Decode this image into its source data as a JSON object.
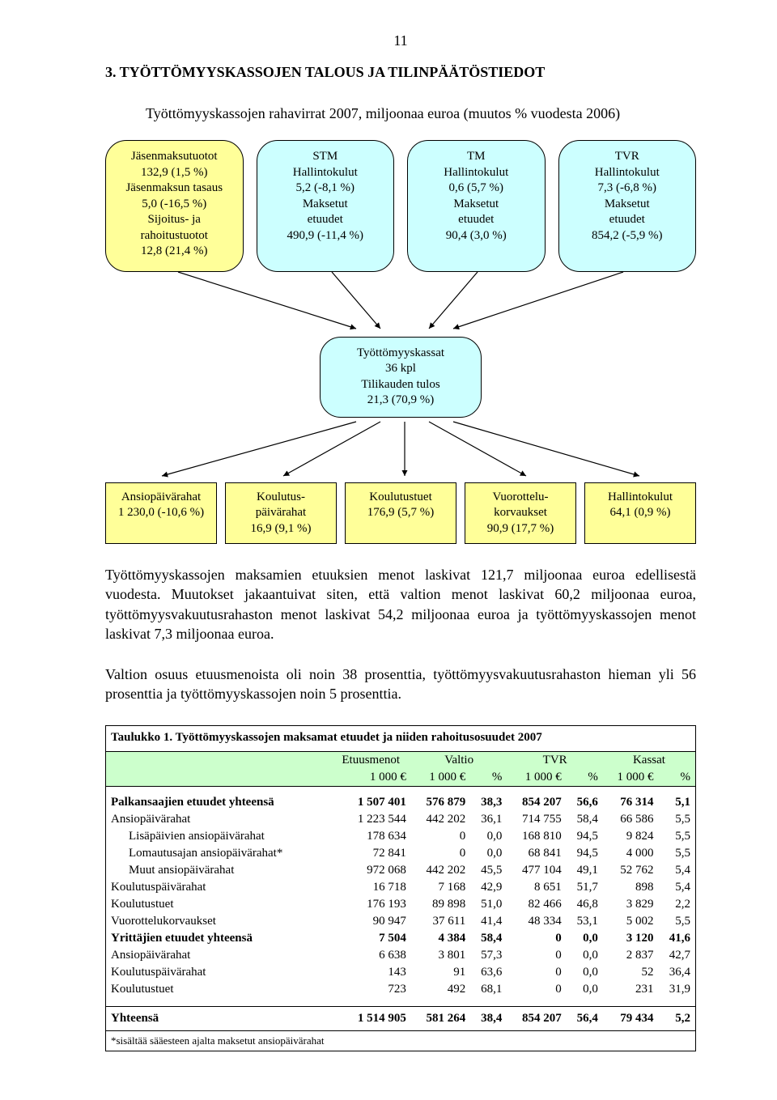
{
  "page_number": "11",
  "section_heading": "3. TYÖTTÖMYYSKASSOJEN TALOUS JA TILINPÄÄTÖSTIEDOT",
  "diagram": {
    "title": "Työttömyyskassojen rahavirrat 2007, miljoonaa euroa (muutos % vuodesta 2006)",
    "top_boxes": [
      "Jäsenmaksutuotot\n132,9 (1,5 %)\nJäsenmaksun tasaus\n5,0 (-16,5 %)\nSijoitus- ja\nrahoitustuotot\n12,8 (21,4 %)",
      "STM\nHallintokulut\n5,2 (-8,1 %)\nMaksetut\netuudet\n490,9 (-11,4 %)",
      "TM\nHallintokulut\n0,6 (5,7 %)\nMaksetut\netuudet\n90,4 (3,0 %)",
      "TVR\nHallintokulut\n7,3 (-6,8 %)\nMaksetut\netuudet\n854,2 (-5,9 %)"
    ],
    "center_box": "Työttömyyskassat\n36 kpl\nTilikauden tulos\n21,3 (70,9 %)",
    "bottom_boxes": [
      "Ansiopäivärahat\n1 230,0 (-10,6 %)",
      "Koulutus-\npäivärahat\n16,9 (9,1 %)",
      "Koulutustuet\n176,9 (5,7 %)",
      "Vuorottelu-\nkorvaukset\n90,9 (17,7 %)",
      "Hallintokulut\n64,1 (0,9 %)"
    ],
    "colors": {
      "yellow": "#ffff99",
      "cyan": "#ccffff",
      "green": "#ccffcc"
    }
  },
  "paragraph1": "Työttömyyskassojen maksamien etuuksien menot laskivat 121,7 miljoonaa euroa edellisestä vuodesta. Muutokset jakaantuivat siten, että valtion menot laskivat 60,2 miljoonaa euroa, työttömyysvakuutusrahaston menot laskivat 54,2 miljoonaa euroa ja työttömyyskassojen menot laskivat 7,3 miljoonaa euroa.",
  "paragraph2": "Valtion osuus etuusmenoista oli noin 38 prosenttia, työttömyysvakuutusrahaston hieman yli 56 prosenttia ja työttömyyskassojen noin 5 prosenttia.",
  "table": {
    "caption": "Taulukko 1. Työttömyyskassojen maksamat etuudet ja niiden rahoitusosuudet 2007",
    "headers1": [
      "",
      "Etuusmenot",
      "Valtio",
      "",
      "TVR",
      "",
      "Kassat",
      ""
    ],
    "headers2": [
      "",
      "1 000 €",
      "1 000 €",
      "%",
      "1 000 €",
      "%",
      "1 000 €",
      "%"
    ],
    "rows": [
      {
        "bold": true,
        "cells": [
          "Palkansaajien etuudet yhteensä",
          "1 507 401",
          "576 879",
          "38,3",
          "854 207",
          "56,6",
          "76 314",
          "5,1"
        ]
      },
      {
        "bold": false,
        "cells": [
          "Ansiopäivärahat",
          "1 223 544",
          "442 202",
          "36,1",
          "714 755",
          "58,4",
          "66 586",
          "5,5"
        ]
      },
      {
        "bold": false,
        "indent": true,
        "cells": [
          "Lisäpäivien ansiopäivärahat",
          "178 634",
          "0",
          "0,0",
          "168 810",
          "94,5",
          "9 824",
          "5,5"
        ]
      },
      {
        "bold": false,
        "indent": true,
        "cells": [
          "Lomautusajan ansiopäivärahat*",
          "72 841",
          "0",
          "0,0",
          "68 841",
          "94,5",
          "4 000",
          "5,5"
        ]
      },
      {
        "bold": false,
        "indent": true,
        "cells": [
          "Muut ansiopäivärahat",
          "972 068",
          "442 202",
          "45,5",
          "477 104",
          "49,1",
          "52 762",
          "5,4"
        ]
      },
      {
        "bold": false,
        "cells": [
          "Koulutuspäivärahat",
          "16 718",
          "7 168",
          "42,9",
          "8 651",
          "51,7",
          "898",
          "5,4"
        ]
      },
      {
        "bold": false,
        "cells": [
          "Koulutustuet",
          "176 193",
          "89 898",
          "51,0",
          "82 466",
          "46,8",
          "3 829",
          "2,2"
        ]
      },
      {
        "bold": false,
        "cells": [
          "Vuorottelukorvaukset",
          "90 947",
          "37 611",
          "41,4",
          "48 334",
          "53,1",
          "5 002",
          "5,5"
        ]
      },
      {
        "bold": true,
        "cells": [
          "Yrittäjien etuudet yhteensä",
          "7 504",
          "4 384",
          "58,4",
          "0",
          "0,0",
          "3 120",
          "41,6"
        ]
      },
      {
        "bold": false,
        "cells": [
          "Ansiopäivärahat",
          "6 638",
          "3 801",
          "57,3",
          "0",
          "0,0",
          "2 837",
          "42,7"
        ]
      },
      {
        "bold": false,
        "cells": [
          "Koulutuspäivärahat",
          "143",
          "91",
          "63,6",
          "0",
          "0,0",
          "52",
          "36,4"
        ]
      },
      {
        "bold": false,
        "cells": [
          "Koulutustuet",
          "723",
          "492",
          "68,1",
          "0",
          "0,0",
          "231",
          "31,9"
        ]
      }
    ],
    "total": [
      "Yhteensä",
      "1 514 905",
      "581 264",
      "38,4",
      "854 207",
      "56,4",
      "79 434",
      "5,2"
    ],
    "footnote": "*sisältää sääesteen ajalta maksetut ansiopäivärahat"
  }
}
